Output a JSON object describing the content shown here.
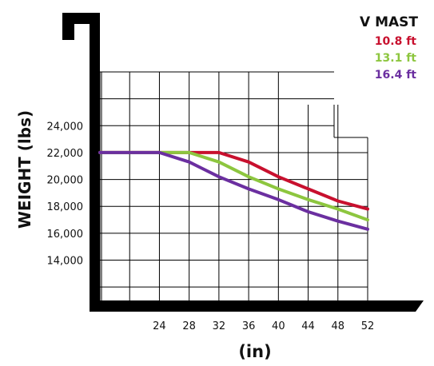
{
  "chart_data": {
    "type": "line",
    "title": "",
    "xlabel": "(in)",
    "ylabel": "WEIGHT (lbs)",
    "x": [
      24,
      28,
      32,
      36,
      40,
      44,
      48,
      52
    ],
    "x_tick_labels": [
      "24",
      "28",
      "32",
      "36",
      "40",
      "44",
      "48",
      "52"
    ],
    "y_tick_labels": [
      "14,000",
      "16,000",
      "18,000",
      "20,000",
      "22,000",
      "24,000"
    ],
    "y_ticks": [
      14000,
      16000,
      18000,
      20000,
      22000,
      24000
    ],
    "xlim": [
      16,
      52
    ],
    "ylim": [
      11000,
      28000
    ],
    "grid": true,
    "legend": {
      "title": "V MAST",
      "placement": "top-right"
    },
    "series": [
      {
        "name": "10.8 ft",
        "color": "#c8102e",
        "points": [
          [
            16,
            22000
          ],
          [
            24,
            22000
          ],
          [
            28,
            22000
          ],
          [
            32,
            22000
          ],
          [
            36,
            21300
          ],
          [
            40,
            20200
          ],
          [
            44,
            19300
          ],
          [
            48,
            18400
          ],
          [
            52,
            17800
          ]
        ]
      },
      {
        "name": "13.1 ft",
        "color": "#8dc63f",
        "points": [
          [
            16,
            22000
          ],
          [
            24,
            22000
          ],
          [
            28,
            22000
          ],
          [
            32,
            21300
          ],
          [
            36,
            20200
          ],
          [
            40,
            19300
          ],
          [
            44,
            18500
          ],
          [
            48,
            17800
          ],
          [
            52,
            17000
          ]
        ]
      },
      {
        "name": "16.4 ft",
        "color": "#6b2fa0",
        "points": [
          [
            16,
            22000
          ],
          [
            24,
            22000
          ],
          [
            28,
            21300
          ],
          [
            32,
            20200
          ],
          [
            36,
            19300
          ],
          [
            40,
            18500
          ],
          [
            44,
            17600
          ],
          [
            48,
            16900
          ],
          [
            52,
            16300
          ]
        ]
      }
    ]
  }
}
